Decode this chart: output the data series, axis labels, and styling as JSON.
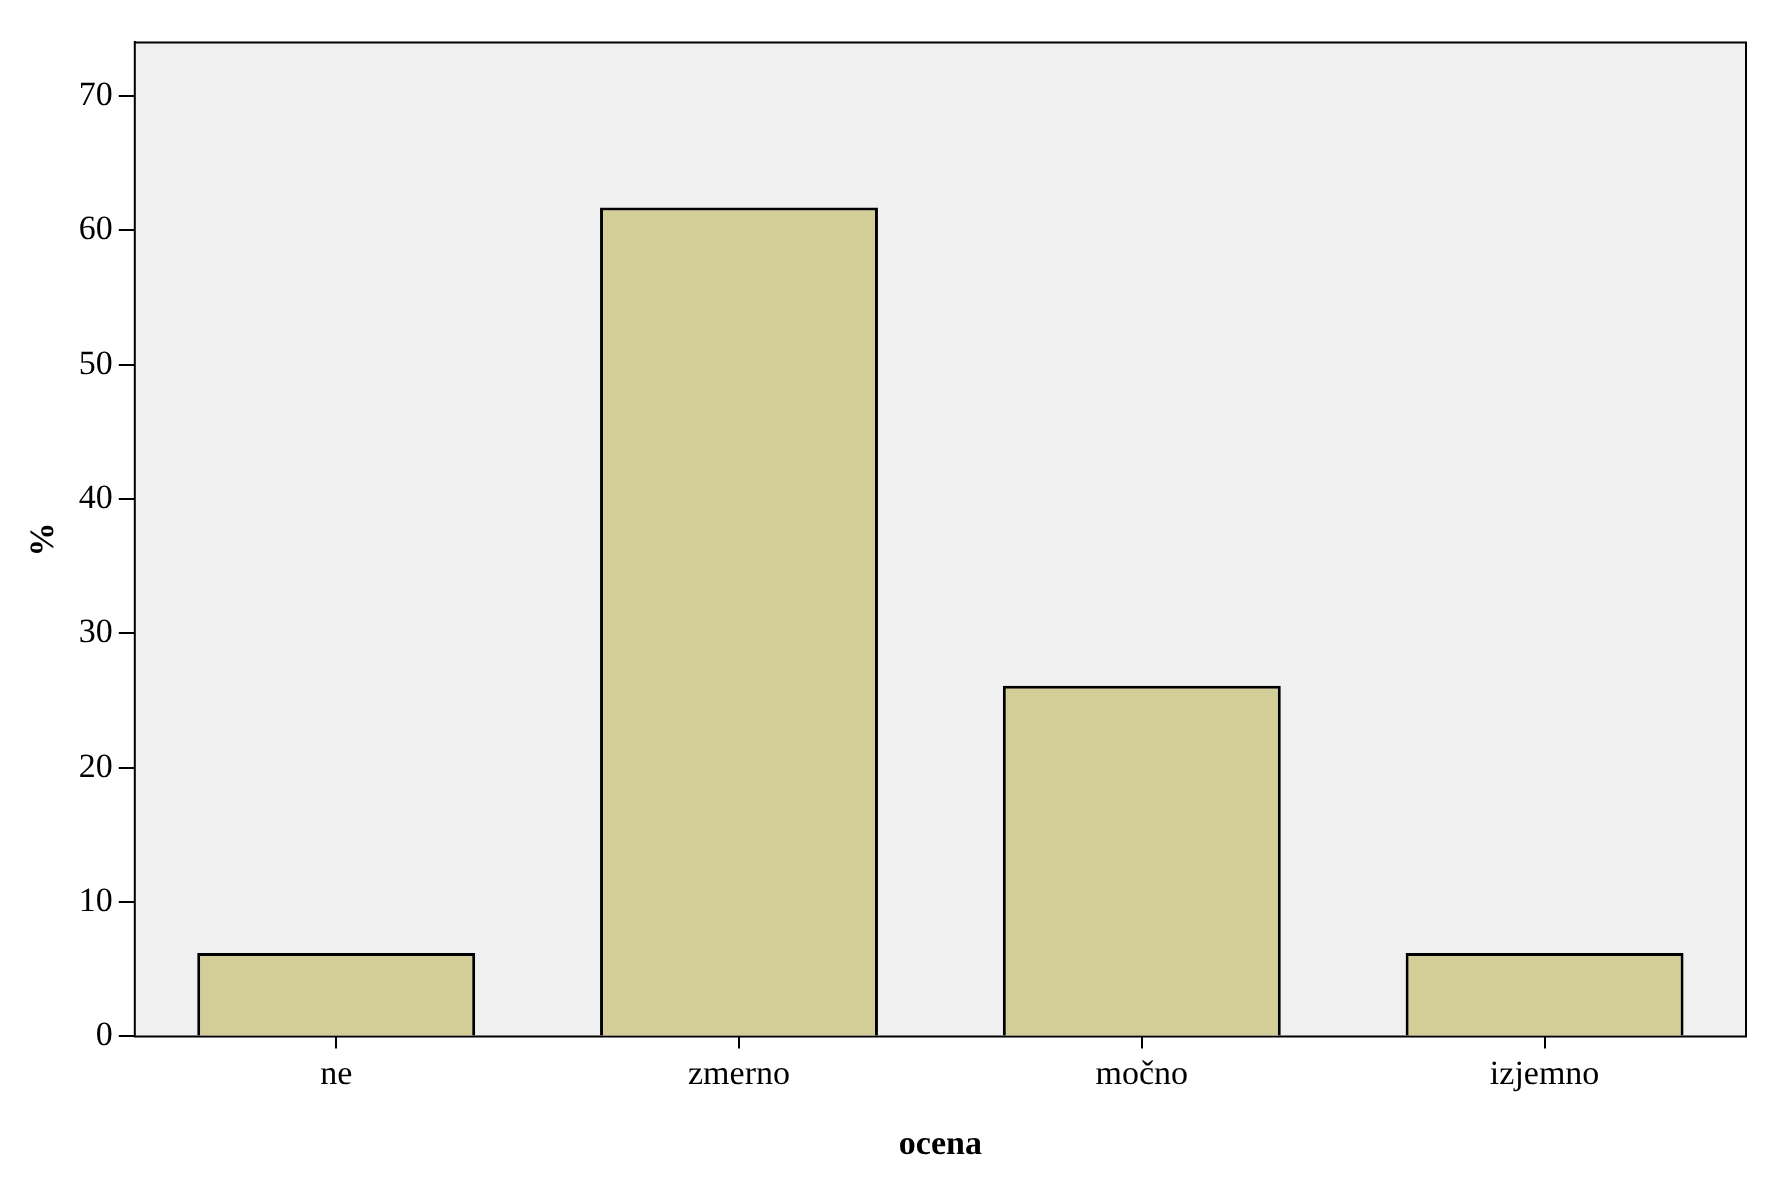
{
  "chart_data": {
    "type": "bar",
    "xlabel": "ocena",
    "ylabel": "%",
    "categories": [
      "ne",
      "zmerno",
      "močno",
      "izjemno"
    ],
    "values": [
      6.2,
      61.7,
      26.1,
      6.2
    ],
    "color": "#d3ce97",
    "ylim": [
      0,
      74
    ],
    "yticks": [
      0,
      10,
      20,
      30,
      40,
      50,
      60,
      70
    ],
    "legend": false
  }
}
